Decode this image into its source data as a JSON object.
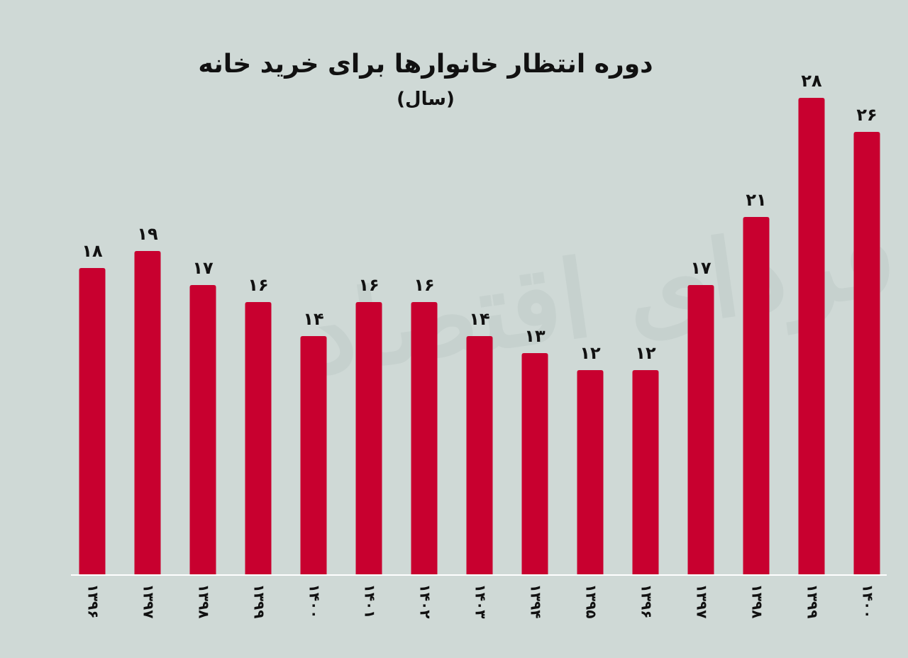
{
  "chart_data": {
    "type": "bar",
    "title": "دوره انتظار خانوارها برای خرید خانه",
    "subtitle": "(سال)",
    "watermark": "فردای اقتصاد",
    "categories": [
      "۱۳۹۶",
      "۱۳۹۷",
      "۱۳۹۸",
      "۱۳۹۹",
      "۱۴۰۰",
      "۱۴۰۱",
      "۱۴۰۲",
      "۱۴۰۳",
      "۱۳۹۴",
      "۱۳۹۵",
      "۱۳۹۶",
      "۱۳۹۷",
      "۱۳۹۸",
      "۱۳۹۹",
      "۱۴۰۰"
    ],
    "tick_labels": [
      "۱۳۹۶",
      "۱۳۹۷",
      "۱۳۹۸",
      "۱۳۹۹",
      "۱۴۰۰",
      "۱۴۰۱",
      "۱۴۰۲",
      "۱۴۰۳",
      "۱۳۹۴",
      "۱۳۹۵",
      "۱۳۹۶",
      "۱۳۹۷",
      "۱۳۹۸",
      "۱۳۹۹",
      "۱۴۰۰"
    ],
    "values": [
      18,
      19,
      17,
      16,
      14,
      16,
      16,
      14,
      13,
      12,
      12,
      17,
      21,
      28,
      26
    ],
    "value_labels": [
      "۱۸",
      "۱۹",
      "۱۷",
      "۱۶",
      "۱۴",
      "۱۶",
      "۱۶",
      "۱۴",
      "۱۳",
      "۱۲",
      "۱۲",
      "۱۷",
      "۲۱",
      "۲۸",
      "۲۶"
    ],
    "ylim": [
      0,
      28
    ],
    "bar_color": "#c8002f",
    "axis_color": "#ffffff",
    "text_color": "#111111",
    "grid": false
  }
}
